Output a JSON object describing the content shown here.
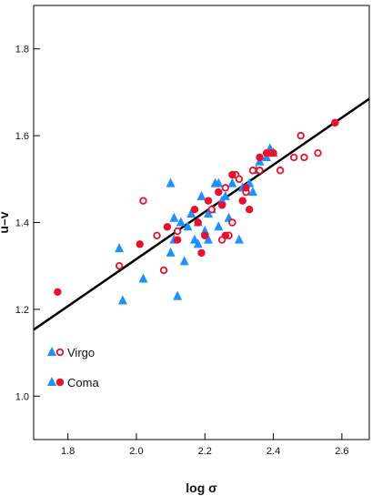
{
  "chart_data": {
    "type": "scatter",
    "xlabel": "log σ",
    "ylabel": "u–v",
    "xlim": [
      1.7,
      2.68
    ],
    "ylim": [
      0.9,
      1.9
    ],
    "xticks": [
      1.8,
      2.0,
      2.2,
      2.4,
      2.6
    ],
    "yticks": [
      1.0,
      1.2,
      1.4,
      1.6,
      1.8
    ],
    "grid": false,
    "legend": {
      "placement": "bottom-left",
      "entries": [
        {
          "label": "Virgo",
          "symbols": [
            "filled-triangle",
            "open-circle"
          ]
        },
        {
          "label": "Coma",
          "symbols": [
            "filled-triangle",
            "filled-circle"
          ]
        }
      ]
    },
    "colors": {
      "blue": "#1e90ff",
      "red": "#e8102a",
      "line": "#000000"
    },
    "fit_line": {
      "x": [
        1.7,
        2.68
      ],
      "y": [
        1.153,
        1.685
      ]
    },
    "series": [
      {
        "marker": "filled-triangle",
        "color": "#1e90ff",
        "points": [
          [
            1.95,
            1.34
          ],
          [
            1.96,
            1.22
          ],
          [
            2.02,
            1.27
          ],
          [
            2.1,
            1.49
          ],
          [
            2.1,
            1.33
          ],
          [
            2.11,
            1.36
          ],
          [
            2.11,
            1.41
          ],
          [
            2.12,
            1.23
          ],
          [
            2.13,
            1.4
          ],
          [
            2.14,
            1.31
          ],
          [
            2.15,
            1.39
          ],
          [
            2.16,
            1.42
          ],
          [
            2.17,
            1.36
          ],
          [
            2.18,
            1.4
          ],
          [
            2.18,
            1.35
          ],
          [
            2.19,
            1.46
          ],
          [
            2.2,
            1.38
          ],
          [
            2.21,
            1.42
          ],
          [
            2.21,
            1.36
          ],
          [
            2.22,
            1.43
          ],
          [
            2.23,
            1.49
          ],
          [
            2.24,
            1.49
          ],
          [
            2.24,
            1.39
          ],
          [
            2.25,
            1.45
          ],
          [
            2.26,
            1.46
          ],
          [
            2.27,
            1.41
          ],
          [
            2.28,
            1.49
          ],
          [
            2.3,
            1.36
          ],
          [
            2.31,
            1.48
          ],
          [
            2.33,
            1.49
          ],
          [
            2.34,
            1.47
          ],
          [
            2.35,
            1.52
          ],
          [
            2.36,
            1.54
          ],
          [
            2.38,
            1.55
          ],
          [
            2.39,
            1.57
          ],
          [
            2.4,
            1.56
          ]
        ]
      },
      {
        "marker": "open-circle",
        "color": "#e8102a",
        "points": [
          [
            1.95,
            1.3
          ],
          [
            2.02,
            1.45
          ],
          [
            2.06,
            1.37
          ],
          [
            2.08,
            1.29
          ],
          [
            2.12,
            1.38
          ],
          [
            2.22,
            1.43
          ],
          [
            2.25,
            1.36
          ],
          [
            2.26,
            1.48
          ],
          [
            2.27,
            1.37
          ],
          [
            2.28,
            1.4
          ],
          [
            2.29,
            1.51
          ],
          [
            2.3,
            1.5
          ],
          [
            2.32,
            1.47
          ],
          [
            2.34,
            1.52
          ],
          [
            2.36,
            1.52
          ],
          [
            2.39,
            1.56
          ],
          [
            2.42,
            1.52
          ],
          [
            2.46,
            1.55
          ],
          [
            2.48,
            1.6
          ],
          [
            2.49,
            1.55
          ],
          [
            2.53,
            1.56
          ],
          [
            2.58,
            1.63
          ]
        ]
      },
      {
        "marker": "filled-circle",
        "color": "#e8102a",
        "points": [
          [
            1.77,
            1.24
          ],
          [
            2.01,
            1.35
          ],
          [
            2.09,
            1.39
          ],
          [
            2.12,
            1.36
          ],
          [
            2.17,
            1.43
          ],
          [
            2.18,
            1.4
          ],
          [
            2.19,
            1.33
          ],
          [
            2.2,
            1.37
          ],
          [
            2.21,
            1.45
          ],
          [
            2.24,
            1.47
          ],
          [
            2.25,
            1.44
          ],
          [
            2.26,
            1.37
          ],
          [
            2.28,
            1.51
          ],
          [
            2.31,
            1.45
          ],
          [
            2.32,
            1.48
          ],
          [
            2.33,
            1.43
          ],
          [
            2.36,
            1.55
          ],
          [
            2.38,
            1.56
          ],
          [
            2.4,
            1.56
          ],
          [
            2.58,
            1.63
          ]
        ]
      }
    ]
  }
}
